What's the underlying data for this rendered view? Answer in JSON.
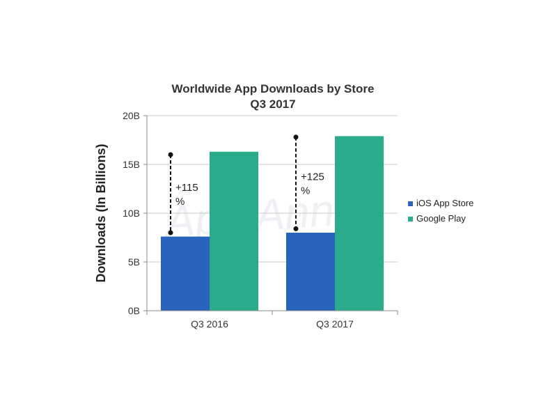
{
  "chart_data": {
    "type": "bar",
    "title": "Worldwide App Downloads by Store",
    "subtitle": "Q3 2017",
    "xlabel": "",
    "ylabel": "Downloads (In Billions)",
    "categories": [
      "Q3 2016",
      "Q3 2017"
    ],
    "series": [
      {
        "name": "iOS App Store",
        "values": [
          7.6,
          8.0
        ],
        "color": "#2a63be"
      },
      {
        "name": "Google Play",
        "values": [
          16.3,
          17.9
        ],
        "color": "#2aac8c"
      }
    ],
    "ylim": [
      0,
      20
    ],
    "yticks": [
      0,
      5,
      10,
      15,
      20
    ],
    "ytick_labels": [
      "0B",
      "5B",
      "10B",
      "15B",
      "20B"
    ],
    "grid": true,
    "legend_position": "right",
    "annotations": [
      {
        "category": "Q3 2016",
        "from": 8.0,
        "to": 16.0,
        "line1": "+115",
        "line2": "%"
      },
      {
        "category": "Q3 2017",
        "from": 8.4,
        "to": 17.8,
        "line1": "+125",
        "line2": "%"
      }
    ],
    "watermark": "App Annie"
  }
}
